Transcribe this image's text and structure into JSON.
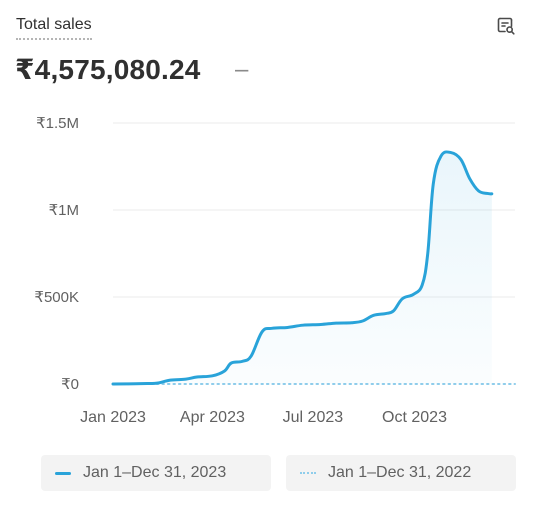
{
  "card": {
    "title": "Total sales",
    "total": "₹4,575,080.24",
    "delta": "–",
    "icon": "chart-search-icon"
  },
  "colors": {
    "current": "#29a3d9",
    "comparison": "#8fcdeb",
    "grid": "#ebebeb"
  },
  "legend": [
    {
      "label": "Jan 1–Dec 31, 2023",
      "style": "solid"
    },
    {
      "label": "Jan 1–Dec 31, 2022",
      "style": "dotted"
    }
  ],
  "chart_data": {
    "type": "line",
    "title": "",
    "xlabel": "",
    "ylabel": "",
    "y_tick_labels": [
      "₹0",
      "₹500K",
      "₹1M",
      "₹1.5M"
    ],
    "y_ticks": [
      0,
      500000,
      1000000,
      1500000
    ],
    "ylim": [
      0,
      1500000
    ],
    "x_tick_labels": [
      "Jan 2023",
      "Apr 2023",
      "Jul 2023",
      "Oct 2023"
    ],
    "x_ticks": [
      "2023-01-01",
      "2023-04-01",
      "2023-07-01",
      "2023-10-01"
    ],
    "xlim": [
      "2023-01-01",
      "2023-12-31"
    ],
    "grid": true,
    "legend_position": "bottom",
    "series": [
      {
        "name": "Jan 1–Dec 31, 2023",
        "style": "solid",
        "points": [
          [
            "2023-01-01",
            0
          ],
          [
            "2023-01-15",
            1000
          ],
          [
            "2023-02-01",
            3000
          ],
          [
            "2023-02-10",
            5000
          ],
          [
            "2023-02-22",
            22000
          ],
          [
            "2023-03-08",
            28000
          ],
          [
            "2023-03-18",
            40000
          ],
          [
            "2023-04-01",
            47000
          ],
          [
            "2023-04-12",
            75000
          ],
          [
            "2023-04-18",
            120000
          ],
          [
            "2023-04-28",
            130000
          ],
          [
            "2023-05-06",
            160000
          ],
          [
            "2023-05-16",
            300000
          ],
          [
            "2023-05-25",
            320000
          ],
          [
            "2023-06-08",
            325000
          ],
          [
            "2023-06-22",
            338000
          ],
          [
            "2023-07-08",
            342000
          ],
          [
            "2023-07-22",
            350000
          ],
          [
            "2023-08-05",
            352000
          ],
          [
            "2023-08-15",
            362000
          ],
          [
            "2023-08-25",
            395000
          ],
          [
            "2023-09-05",
            405000
          ],
          [
            "2023-09-12",
            420000
          ],
          [
            "2023-09-20",
            490000
          ],
          [
            "2023-09-30",
            515000
          ],
          [
            "2023-10-08",
            570000
          ],
          [
            "2023-10-13",
            750000
          ],
          [
            "2023-10-18",
            1150000
          ],
          [
            "2023-10-25",
            1310000
          ],
          [
            "2023-11-03",
            1330000
          ],
          [
            "2023-11-12",
            1290000
          ],
          [
            "2023-11-20",
            1180000
          ],
          [
            "2023-11-28",
            1110000
          ],
          [
            "2023-12-06",
            1095000
          ],
          [
            "2023-12-10",
            1093000
          ]
        ]
      },
      {
        "name": "Jan 1–Dec 31, 2022",
        "style": "dotted",
        "points": [
          [
            "2023-01-01",
            0
          ],
          [
            "2023-12-31",
            0
          ]
        ]
      }
    ]
  }
}
